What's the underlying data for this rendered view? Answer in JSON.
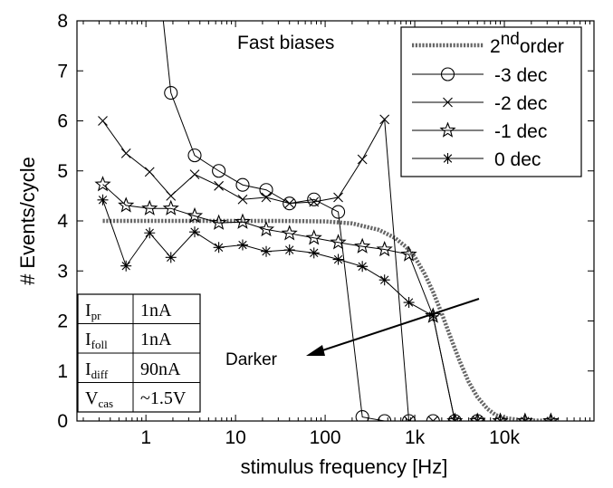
{
  "chart_data": {
    "type": "line",
    "title": "",
    "xlabel": "stimulus frequency [Hz]",
    "ylabel": "# Events/cycle",
    "x_scale": "log",
    "xlim": [
      0.17,
      100000
    ],
    "ylim": [
      0,
      8
    ],
    "x_ticks": [
      {
        "value": 1,
        "label": "1"
      },
      {
        "value": 10,
        "label": "10"
      },
      {
        "value": 100,
        "label": "100"
      },
      {
        "value": 1000,
        "label": "1k"
      },
      {
        "value": 10000,
        "label": "10k"
      }
    ],
    "y_ticks": [
      0,
      1,
      2,
      3,
      4,
      5,
      6,
      7,
      8
    ],
    "grid": false,
    "legend_position": "top-right",
    "series": [
      {
        "key": "second-order",
        "legend_name": "2",
        "legend_sup": "nd",
        "legend_suffix": "order",
        "marker": "none",
        "style": "dotted-thick",
        "x": [
          0.33,
          1,
          3,
          10,
          30,
          100,
          200,
          400,
          600,
          800,
          1000,
          1300,
          1600,
          2000,
          2600,
          3200,
          4000,
          5000,
          6500,
          8000,
          10000,
          15000,
          20000,
          40000
        ],
        "y": [
          4.0,
          4.0,
          4.0,
          4.0,
          4.0,
          3.99,
          3.95,
          3.82,
          3.66,
          3.48,
          3.28,
          2.93,
          2.58,
          2.15,
          1.6,
          1.18,
          0.78,
          0.48,
          0.24,
          0.12,
          0.06,
          0.02,
          0.01,
          0.0
        ]
      },
      {
        "key": "minus-3-dec",
        "name": "-3 dec",
        "marker": "circle",
        "x": [
          1.5,
          1.9,
          3.5,
          6.5,
          12,
          22,
          40,
          75,
          140,
          260,
          460,
          860,
          1600,
          2800,
          5000
        ],
        "y": [
          8.3,
          6.56,
          5.31,
          5.0,
          4.72,
          4.62,
          4.35,
          4.43,
          4.18,
          0.08,
          0.0,
          0.0,
          0.0,
          0.0,
          0.0
        ]
      },
      {
        "key": "minus-2-dec",
        "name": "-2 dec",
        "marker": "x",
        "x": [
          0.33,
          0.6,
          1.1,
          1.9,
          3.5,
          6.5,
          12,
          22,
          40,
          75,
          140,
          260,
          460,
          860,
          1600,
          2800,
          5000
        ],
        "y": [
          6.0,
          5.35,
          4.98,
          4.5,
          4.93,
          4.7,
          4.43,
          4.47,
          4.35,
          4.38,
          4.47,
          5.23,
          6.03,
          0.0,
          0.0,
          0.0,
          0.0
        ]
      },
      {
        "key": "minus-1-dec",
        "name": "-1 dec",
        "marker": "star5",
        "x": [
          0.33,
          0.6,
          1.1,
          1.9,
          3.5,
          6.5,
          12,
          22,
          40,
          75,
          140,
          260,
          460,
          860,
          1600,
          2800,
          5000,
          9000,
          17000,
          33000
        ],
        "y": [
          4.73,
          4.31,
          4.25,
          4.25,
          4.1,
          3.96,
          3.98,
          3.83,
          3.75,
          3.66,
          3.57,
          3.49,
          3.43,
          3.33,
          2.1,
          0.0,
          0.0,
          0.0,
          0.0,
          0.0
        ]
      },
      {
        "key": "zero-dec",
        "name": "0 dec",
        "marker": "asterisk",
        "x": [
          0.33,
          0.6,
          1.1,
          1.9,
          3.5,
          6.5,
          12,
          22,
          40,
          75,
          140,
          260,
          460,
          860,
          1600,
          2800,
          5000,
          9000,
          17000,
          33000
        ],
        "y": [
          4.42,
          3.1,
          3.76,
          3.27,
          3.78,
          3.47,
          3.52,
          3.39,
          3.42,
          3.36,
          3.23,
          3.09,
          2.82,
          2.37,
          2.1,
          0.0,
          0.0,
          0.0,
          0.0,
          0.0
        ]
      }
    ],
    "annotations": {
      "title_text": "Fast biases",
      "arrow_label": "Darker"
    },
    "param_table": [
      {
        "sym": "I",
        "sub": "pr",
        "value": "1nA"
      },
      {
        "sym": "I",
        "sub": "foll",
        "value": "1nA"
      },
      {
        "sym": "I",
        "sub": "diff",
        "value": "90nA"
      },
      {
        "sym": "V",
        "sub": "cas",
        "value": "~1.5V"
      }
    ]
  }
}
